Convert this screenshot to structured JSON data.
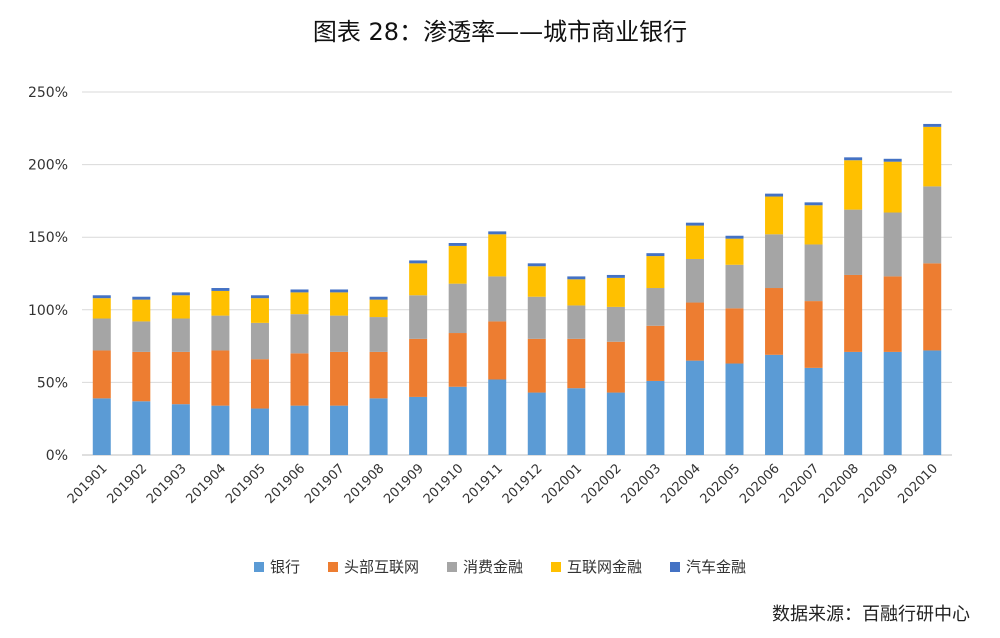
{
  "title": "图表 28：渗透率——城市商业银行",
  "source": "数据来源：百融行研中心",
  "colors": {
    "银行": "#5b9bd5",
    "头部互联网": "#ed7d31",
    "消费金融": "#a5a5a5",
    "互联网金融": "#ffc000",
    "汽车金融": "#4472c4"
  },
  "chart_data": {
    "type": "bar",
    "stacked": true,
    "title": "图表 28：渗透率——城市商业银行",
    "xlabel": "",
    "ylabel": "",
    "ylim": [
      0,
      250
    ],
    "yticks": [
      "0%",
      "50%",
      "100%",
      "150%",
      "200%",
      "250%"
    ],
    "grid": true,
    "legend_position": "bottom",
    "categories": [
      "201901",
      "201902",
      "201903",
      "201904",
      "201905",
      "201906",
      "201907",
      "201908",
      "201909",
      "201910",
      "201911",
      "201912",
      "202001",
      "202002",
      "202003",
      "202004",
      "202005",
      "202006",
      "202007",
      "202008",
      "202009",
      "202010"
    ],
    "series": [
      {
        "name": "银行",
        "values": [
          39,
          37,
          35,
          34,
          32,
          34,
          34,
          39,
          40,
          47,
          52,
          43,
          46,
          43,
          51,
          65,
          63,
          69,
          60,
          71,
          71,
          72
        ]
      },
      {
        "name": "头部互联网",
        "values": [
          33,
          34,
          36,
          38,
          34,
          36,
          37,
          32,
          40,
          37,
          40,
          37,
          34,
          35,
          38,
          40,
          38,
          46,
          46,
          53,
          52,
          60
        ]
      },
      {
        "name": "消费金融",
        "values": [
          22,
          21,
          23,
          24,
          25,
          27,
          25,
          24,
          30,
          34,
          31,
          29,
          23,
          24,
          26,
          30,
          30,
          37,
          39,
          45,
          44,
          53
        ]
      },
      {
        "name": "互联网金融",
        "values": [
          14,
          15,
          16,
          17,
          17,
          15,
          16,
          12,
          22,
          26,
          29,
          21,
          18,
          20,
          22,
          23,
          18,
          26,
          27,
          34,
          35,
          41
        ]
      },
      {
        "name": "汽车金融",
        "values": [
          2,
          2,
          2,
          2,
          2,
          2,
          2,
          2,
          2,
          2,
          2,
          2,
          2,
          2,
          2,
          2,
          2,
          2,
          2,
          2,
          2,
          2
        ]
      }
    ]
  }
}
